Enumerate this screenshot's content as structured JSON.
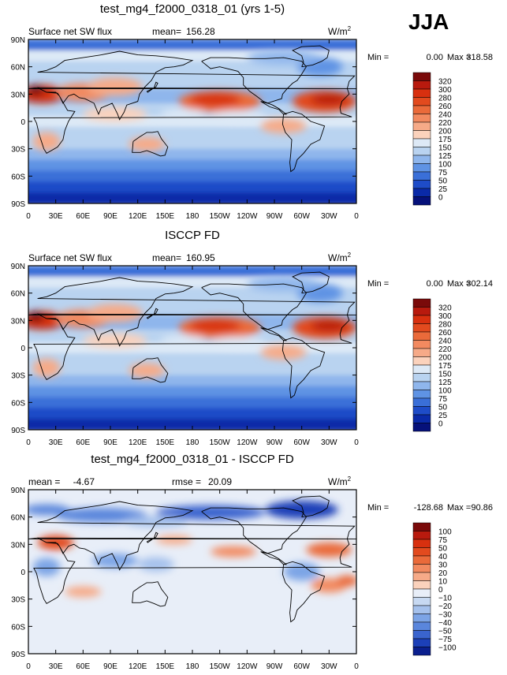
{
  "season": "JJA",
  "units": "W/m",
  "units_sup": "2",
  "lat_ticks": [
    "90N",
    "60N",
    "30N",
    "0",
    "30S",
    "60S",
    "90S"
  ],
  "lon_ticks": [
    "0",
    "30E",
    "60E",
    "90E",
    "120E",
    "150E",
    "180",
    "150W",
    "120W",
    "90W",
    "60W",
    "30W",
    "0"
  ],
  "panels": [
    {
      "title": "test_mg4_f2000_0318_01 (yrs 1-5)",
      "left_label": "Surface net SW flux",
      "stat_label": "mean=",
      "stat_value": "156.28",
      "min_label": "Min =",
      "min_value": "0.00",
      "max_label": "Max =",
      "max_value": "318.58",
      "levels": [
        "320",
        "300",
        "280",
        "260",
        "240",
        "220",
        "200",
        "175",
        "150",
        "125",
        "100",
        "75",
        "50",
        "25",
        "0"
      ]
    },
    {
      "title": "ISCCP FD",
      "left_label": "Surface net SW flux",
      "stat_label": "mean=",
      "stat_value": "160.95",
      "min_label": "Min =",
      "min_value": "0.00",
      "max_label": "Max =",
      "max_value": "302.14",
      "levels": [
        "320",
        "300",
        "280",
        "260",
        "240",
        "220",
        "200",
        "175",
        "150",
        "125",
        "100",
        "75",
        "50",
        "25",
        "0"
      ]
    },
    {
      "title": "test_mg4_f2000_0318_01 - ISCCP FD",
      "left_label": "mean =",
      "left_value": "-4.67",
      "stat_label": "rmse =",
      "stat_value": "20.09",
      "min_label": "Min =",
      "min_value": "-128.68",
      "max_label": "Max =",
      "max_value": "90.86",
      "levels": [
        "100",
        "75",
        "50",
        "40",
        "30",
        "20",
        "10",
        "0",
        "−10",
        "−20",
        "−30",
        "−40",
        "−50",
        "−75",
        "−100"
      ]
    }
  ],
  "colors": {
    "abs_scale": [
      "#7a0a0a",
      "#b81a0e",
      "#d8300f",
      "#e24a1e",
      "#ea6a3a",
      "#f28a60",
      "#f6aa88",
      "#fbd2bc",
      "#dde9f6",
      "#b9d3f0",
      "#8fb6ec",
      "#5f93e4",
      "#3a6fd8",
      "#1e4cc8",
      "#0a2aa8",
      "#06117a"
    ],
    "diff_scale": [
      "#7a0a0a",
      "#b81a0e",
      "#d8300f",
      "#e24a1e",
      "#ea6a3a",
      "#f28a60",
      "#f6aa88",
      "#fbd2bc",
      "#e8eef8",
      "#c7d9f2",
      "#a5c1ec",
      "#7ca4e6",
      "#5a86dc",
      "#3a64ce",
      "#1c40b8",
      "#0a1f8e"
    ]
  },
  "chart_data": [
    {
      "type": "heatmap",
      "title": "test_mg4_f2000_0318_01 (yrs 1-5)",
      "subtitle": "Surface net SW flux",
      "season": "JJA",
      "units": "W/m2",
      "xlim": [
        0,
        360
      ],
      "ylim": [
        -90,
        90
      ],
      "x_ticks": [
        "0",
        "30E",
        "60E",
        "90E",
        "120E",
        "150E",
        "180",
        "150W",
        "120W",
        "90W",
        "60W",
        "30W",
        "0"
      ],
      "y_ticks": [
        "90N",
        "60N",
        "30N",
        "0",
        "30S",
        "60S",
        "90S"
      ],
      "contour_levels": [
        0,
        25,
        50,
        75,
        100,
        125,
        150,
        175,
        200,
        220,
        240,
        260,
        280,
        300,
        320
      ],
      "mean": 156.28,
      "min": 0.0,
      "max": 318.58
    },
    {
      "type": "heatmap",
      "title": "ISCCP FD",
      "subtitle": "Surface net SW flux",
      "units": "W/m2",
      "xlim": [
        0,
        360
      ],
      "ylim": [
        -90,
        90
      ],
      "x_ticks": [
        "0",
        "30E",
        "60E",
        "90E",
        "120E",
        "150E",
        "180",
        "150W",
        "120W",
        "90W",
        "60W",
        "30W",
        "0"
      ],
      "y_ticks": [
        "90N",
        "60N",
        "30N",
        "0",
        "30S",
        "60S",
        "90S"
      ],
      "contour_levels": [
        0,
        25,
        50,
        75,
        100,
        125,
        150,
        175,
        200,
        220,
        240,
        260,
        280,
        300,
        320
      ],
      "mean": 160.95,
      "min": 0.0,
      "max": 302.14
    },
    {
      "type": "heatmap",
      "title": "test_mg4_f2000_0318_01 - ISCCP FD",
      "units": "W/m2",
      "xlim": [
        0,
        360
      ],
      "ylim": [
        -90,
        90
      ],
      "x_ticks": [
        "0",
        "30E",
        "60E",
        "90E",
        "120E",
        "150E",
        "180",
        "150W",
        "120W",
        "90W",
        "60W",
        "30W",
        "0"
      ],
      "y_ticks": [
        "90N",
        "60N",
        "30N",
        "0",
        "30S",
        "60S",
        "90S"
      ],
      "contour_levels": [
        -100,
        -75,
        -50,
        -40,
        -30,
        -20,
        -10,
        0,
        10,
        20,
        30,
        40,
        50,
        75,
        100
      ],
      "mean": -4.67,
      "rmse": 20.09,
      "min": -128.68,
      "max": 90.86
    }
  ]
}
